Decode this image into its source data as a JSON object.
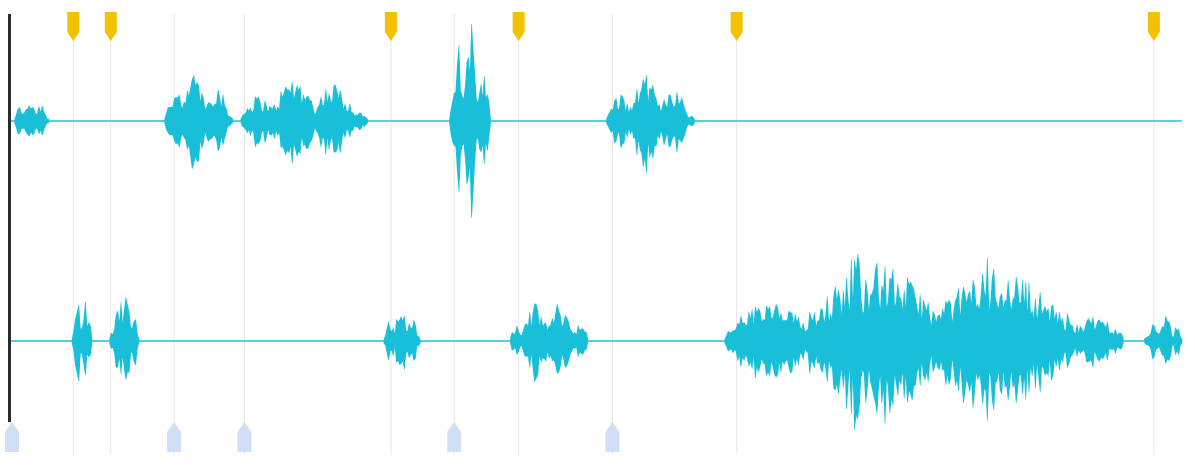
{
  "colors": {
    "background": "#ffffff",
    "waveform": "#19bfd8",
    "baseline": "#58cfe2",
    "gridline": "#e6e6e6",
    "top_marker": "#f2c200",
    "bottom_marker": "#cfe0f6",
    "playhead": "#2b2b2b"
  },
  "timeline": {
    "duration": 100,
    "playhead": 0,
    "top_markers": [
      5.4,
      8.6,
      32.5,
      43.4,
      62.0,
      97.6
    ],
    "bottom_markers": [
      0,
      14.0,
      20.0,
      37.9,
      51.4
    ],
    "gridlines": [
      5.4,
      8.6,
      14.0,
      20.0,
      32.5,
      37.9,
      43.4,
      51.4,
      62.0,
      97.6
    ]
  },
  "tracks": [
    {
      "id": "track-1",
      "segments": [
        {
          "start": 0.4,
          "end": 3.3,
          "amp": 0.28
        },
        {
          "start": 13.2,
          "end": 19.0,
          "amp": 0.55
        },
        {
          "start": 19.7,
          "end": 30.5,
          "amp": 0.5
        },
        {
          "start": 37.5,
          "end": 41.0,
          "amp": 0.95
        },
        {
          "start": 50.9,
          "end": 58.4,
          "amp": 0.5
        }
      ]
    },
    {
      "id": "track-2",
      "segments": [
        {
          "start": 5.3,
          "end": 7.0,
          "amp": 0.55
        },
        {
          "start": 8.5,
          "end": 11.0,
          "amp": 0.55
        },
        {
          "start": 31.9,
          "end": 35.0,
          "amp": 0.38
        },
        {
          "start": 42.7,
          "end": 49.3,
          "amp": 0.45
        },
        {
          "start": 61.0,
          "end": 95.0,
          "amp": 0.9
        },
        {
          "start": 96.8,
          "end": 100.0,
          "amp": 0.28
        }
      ]
    }
  ]
}
